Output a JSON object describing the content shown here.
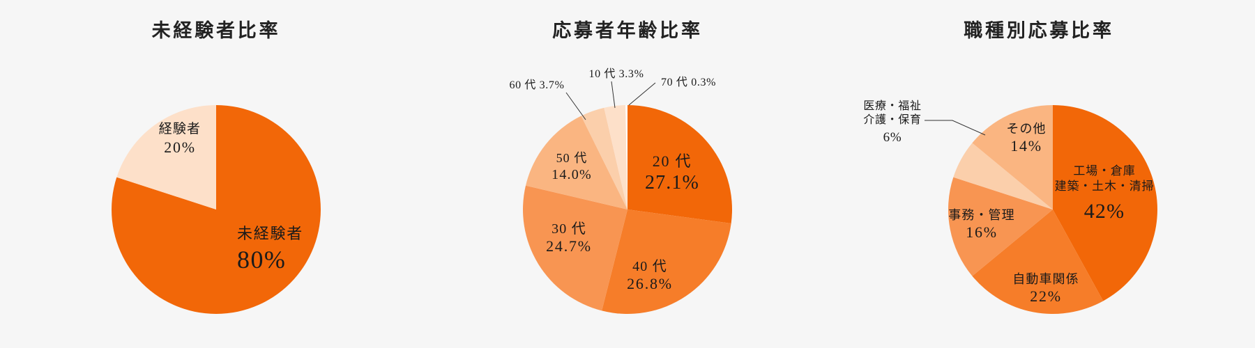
{
  "background_color": "#f6f6f6",
  "text_color": "#1a1a1a",
  "font_family": "serif (Mincho-style)",
  "title_fontsize": 27,
  "chart_radius": 150,
  "charts": [
    {
      "id": "experience",
      "type": "pie",
      "title": "未経験者比率",
      "start_angle_deg": 0,
      "slices": [
        {
          "label": "未経験者",
          "value_label": "80%",
          "value": 80,
          "color": "#f26708",
          "label_fontsize": 22,
          "value_fontsize": 36
        },
        {
          "label": "経験者",
          "value_label": "20%",
          "value": 20,
          "color": "#fde0c9",
          "label_fontsize": 19,
          "value_fontsize": 22
        }
      ]
    },
    {
      "id": "age",
      "type": "pie",
      "title": "応募者年齢比率",
      "start_angle_deg": 0,
      "slices": [
        {
          "label": "20 代",
          "value_label": "27.1%",
          "value": 27.1,
          "color": "#f26708",
          "label_fontsize": 22,
          "value_fontsize": 28
        },
        {
          "label": "40 代",
          "value_label": "26.8%",
          "value": 26.8,
          "color": "#f67d29",
          "label_fontsize": 20,
          "value_fontsize": 22
        },
        {
          "label": "30 代",
          "value_label": "24.7%",
          "value": 24.7,
          "color": "#f89552",
          "label_fontsize": 20,
          "value_fontsize": 22
        },
        {
          "label": "50 代",
          "value_label": "14.0%",
          "value": 14.0,
          "color": "#fab581",
          "label_fontsize": 18,
          "value_fontsize": 20
        },
        {
          "label": "60 代",
          "value_label": "60 代 3.7%",
          "value": 3.7,
          "color": "#fbcfab",
          "callout": true
        },
        {
          "label": "10 代",
          "value_label": "10 代 3.3%",
          "value": 3.3,
          "color": "#fde0c9",
          "callout": true
        },
        {
          "label": "70 代",
          "value_label": "70 代 0.3%",
          "value": 0.3,
          "color": "#ffffff",
          "callout": true
        }
      ],
      "callout_fontsize": 15
    },
    {
      "id": "job",
      "type": "pie",
      "title": "職種別応募比率",
      "start_angle_deg": 0,
      "slices": [
        {
          "label_lines": [
            "工場・倉庫",
            "建築・土木・清掃"
          ],
          "value_label": "42%",
          "value": 42,
          "color": "#f26708",
          "label_fontsize": 17,
          "value_fontsize": 30
        },
        {
          "label_lines": [
            "自動車関係"
          ],
          "value_label": "22%",
          "value": 22,
          "color": "#f67d29",
          "label_fontsize": 18,
          "value_fontsize": 22
        },
        {
          "label_lines": [
            "事務・管理"
          ],
          "value_label": "16%",
          "value": 16,
          "color": "#f89552",
          "label_fontsize": 18,
          "value_fontsize": 22
        },
        {
          "label_lines": [
            "医療・福祉",
            "介護・保育"
          ],
          "value_label": "6%",
          "value": 6,
          "color": "#fbcfab",
          "label_fontsize": 16,
          "value_fontsize": 19,
          "callout": true
        },
        {
          "label_lines": [
            "その他"
          ],
          "value_label": "14%",
          "value": 14,
          "color": "#fab581",
          "label_fontsize": 18,
          "value_fontsize": 22
        }
      ]
    }
  ]
}
